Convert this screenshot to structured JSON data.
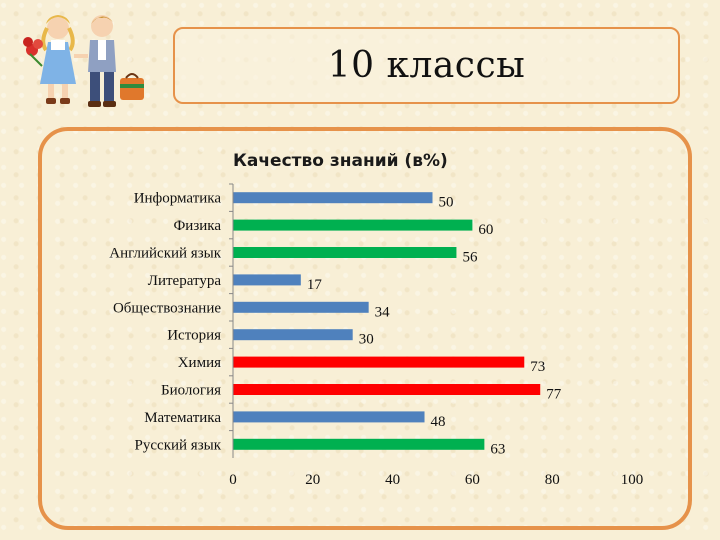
{
  "slide": {
    "title": "10 классы"
  },
  "colors": {
    "blue": "#4f81bd",
    "green": "#00b050",
    "red": "#ff0000",
    "frame": "#e6924a"
  },
  "illustration": {
    "name": "school-children-illustration"
  },
  "chart_data": {
    "type": "bar",
    "orientation": "horizontal",
    "title": "Качество знаний (в%)",
    "categories": [
      "Информатика",
      "Физика",
      "Английский язык",
      "Литература",
      "Обществознание",
      "История",
      "Химия",
      "Биология",
      "Математика",
      "Русский язык"
    ],
    "values": [
      50,
      60,
      56,
      17,
      34,
      30,
      73,
      77,
      48,
      63
    ],
    "bar_colors": [
      "blue",
      "green",
      "green",
      "blue",
      "blue",
      "blue",
      "red",
      "red",
      "blue",
      "green"
    ],
    "xlim": [
      0,
      100
    ],
    "xticks": [
      "0",
      "20",
      "40",
      "60",
      "80",
      "100"
    ],
    "grid": false,
    "legend": "none"
  }
}
